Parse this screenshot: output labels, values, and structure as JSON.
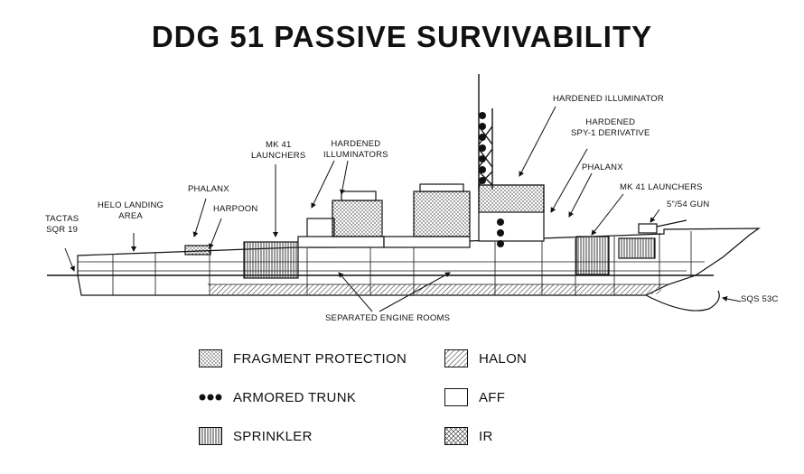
{
  "title": "DDG 51 PASSIVE SURVIVABILITY",
  "labels": {
    "tactas": "TACTAS\nSQR 19",
    "helo": "HELO LANDING\nAREA",
    "phalanx_aft": "PHALANX",
    "harpoon": "HARPOON",
    "mk41_aft": "MK 41\nLAUNCHERS",
    "hardened_illuminators": "HARDENED\nILLUMINATORS",
    "hardened_illuminator": "HARDENED ILLUMINATOR",
    "hardened_spy": "HARDENED\nSPY-1 DERIVATIVE",
    "phalanx_fwd": "PHALANX",
    "mk41_fwd": "MK 41 LAUNCHERS",
    "gun": "5\"/54 GUN",
    "sqs": "SQS 53C",
    "engine_rooms": "SEPARATED ENGINE ROOMS"
  },
  "legend": [
    {
      "key": "fragment",
      "label": "FRAGMENT PROTECTION"
    },
    {
      "key": "halon",
      "label": "HALON"
    },
    {
      "key": "armored",
      "label": "ARMORED TRUNK"
    },
    {
      "key": "aff",
      "label": "AFF"
    },
    {
      "key": "sprinkler",
      "label": "SPRINKLER"
    },
    {
      "key": "ir",
      "label": "IR"
    }
  ]
}
